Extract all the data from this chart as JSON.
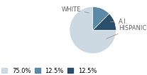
{
  "labels": [
    "WHITE",
    "A.I.",
    "HISPANIC"
  ],
  "values": [
    75.0,
    12.5,
    12.5
  ],
  "colors": [
    "#cdd9e2",
    "#2b4f6b",
    "#5b8aa8"
  ],
  "legend_labels": [
    "75.0%",
    "12.5%",
    "12.5%"
  ],
  "legend_colors": [
    "#cdd9e2",
    "#5b8aa8",
    "#2b4f6b"
  ],
  "startangle": 90,
  "background_color": "#ffffff",
  "label_color": "#666666",
  "line_color": "#999999"
}
